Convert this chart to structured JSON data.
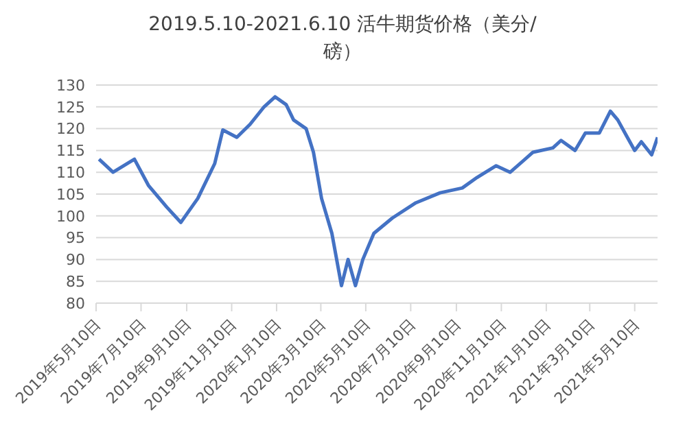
{
  "chart_data": {
    "type": "line",
    "title": "2019.5.10-2021.6.10 活牛期货价格（美分/磅）",
    "x": [
      "2019-05-14",
      "2019-06-02",
      "2019-07-01",
      "2019-07-20",
      "2019-08-14",
      "2019-09-02",
      "2019-09-25",
      "2019-10-18",
      "2019-10-29",
      "2019-11-17",
      "2019-12-05",
      "2019-12-24",
      "2020-01-08",
      "2020-01-23",
      "2020-02-02",
      "2020-02-19",
      "2020-02-29",
      "2020-03-11",
      "2020-03-25",
      "2020-04-07",
      "2020-04-16",
      "2020-04-26",
      "2020-05-06",
      "2020-05-21",
      "2020-06-15",
      "2020-07-17",
      "2020-08-19",
      "2020-09-18",
      "2020-10-08",
      "2020-11-03",
      "2020-11-22",
      "2020-12-23",
      "2021-01-19",
      "2021-01-30",
      "2021-02-18",
      "2021-03-04",
      "2021-03-23",
      "2021-04-07",
      "2021-04-17",
      "2021-04-30",
      "2021-05-10",
      "2021-05-19",
      "2021-06-02",
      "2021-06-10"
    ],
    "series": [
      {
        "color": "#4472c4",
        "values": [
          113,
          110,
          113,
          107,
          102,
          98.5,
          104,
          112,
          119.7,
          118,
          121,
          125,
          127.3,
          125.5,
          122,
          120,
          114.6,
          104,
          96,
          84,
          90,
          84,
          90,
          96,
          99.5,
          103,
          105.3,
          106.4,
          108.8,
          111.5,
          110,
          114.6,
          115.6,
          117.3,
          115,
          119,
          119,
          124,
          122,
          118,
          115,
          117,
          114,
          118
        ]
      }
    ],
    "xlim": [
      "2019-05-10",
      "2021-06-10"
    ],
    "xticks": [
      {
        "value": "2019-05-10",
        "label": "2019年5月10日"
      },
      {
        "value": "2019-07-10",
        "label": "2019年7月10日"
      },
      {
        "value": "2019-09-10",
        "label": "2019年9月10日"
      },
      {
        "value": "2019-11-10",
        "label": "2019年11月10日"
      },
      {
        "value": "2020-01-10",
        "label": "2020年1月10日"
      },
      {
        "value": "2020-03-10",
        "label": "2020年3月10日"
      },
      {
        "value": "2020-05-10",
        "label": "2020年5月10日"
      },
      {
        "value": "2020-07-10",
        "label": "2020年7月10日"
      },
      {
        "value": "2020-09-10",
        "label": "2020年9月10日"
      },
      {
        "value": "2020-11-10",
        "label": "2020年11月10日"
      },
      {
        "value": "2021-01-10",
        "label": "2021年1月10日"
      },
      {
        "value": "2021-03-10",
        "label": "2021年3月10日"
      },
      {
        "value": "2021-05-10",
        "label": "2021年5月10日"
      }
    ],
    "ylim": [
      80,
      130
    ],
    "yticks": [
      80,
      85,
      90,
      95,
      100,
      105,
      110,
      115,
      120,
      125,
      130
    ],
    "grid": "y",
    "legend": false,
    "marker": "none",
    "line_style": "solid"
  }
}
